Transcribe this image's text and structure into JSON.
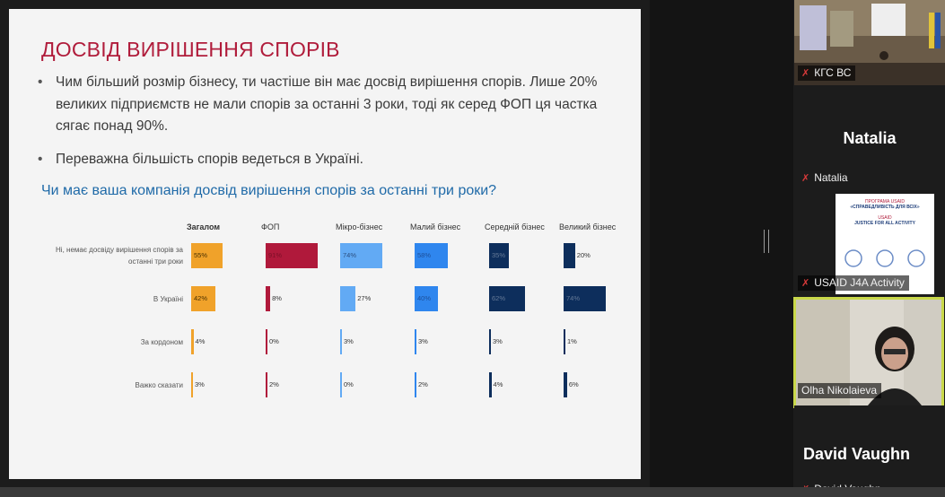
{
  "slide": {
    "title": "ДОСВІД ВИРІШЕННЯ СПОРІВ",
    "bullets": [
      "Чим більший розмір бізнесу, ти частіше він має досвід вирішення спорів. Лише 20% великих підприємств не мали спорів за останні 3 роки, тоді як серед ФОП ця частка сягає понад 90%.",
      "Переважна більшість спорів ведеться в Україні."
    ],
    "question": "Чи має ваша компанія досвід вирішення спорів за останні три роки?"
  },
  "chart_data": {
    "type": "table",
    "columns": [
      {
        "name": "Загалом",
        "color": "#f0a22a"
      },
      {
        "name": "ФОП",
        "color": "#b0193b"
      },
      {
        "name": "Мікро-бізнес",
        "color": "#62aaf4"
      },
      {
        "name": "Малий бізнес",
        "color": "#2f86ee"
      },
      {
        "name": "Середній бізнес",
        "color": "#0d2e5c"
      },
      {
        "name": "Великий  бізнес",
        "color": "#0d2e5c"
      }
    ],
    "rows": [
      {
        "label": "Ні, немає досвіду вирішення спорів за останні три роки",
        "values": [
          55,
          91,
          74,
          58,
          35,
          20
        ]
      },
      {
        "label": "В Україні",
        "values": [
          42,
          8,
          27,
          40,
          62,
          74
        ]
      },
      {
        "label": "За кордоном",
        "values": [
          4,
          0,
          3,
          3,
          3,
          1
        ]
      },
      {
        "label": "Важко сказати",
        "values": [
          3,
          2,
          0,
          2,
          4,
          6
        ]
      }
    ],
    "value_suffix": "%"
  },
  "participants": [
    {
      "name": "КГС ВС",
      "kind": "video"
    },
    {
      "name": "Natalia",
      "kind": "name-only"
    },
    {
      "name": "USAID J4A Activity",
      "kind": "logo",
      "logo_lines": [
        "ПРОГРАМА USAID",
        "«СПРАВЕДЛИВІСТЬ ДЛЯ ВСІХ»",
        "USAID",
        "JUSTICE FOR ALL ACTIVITY"
      ]
    },
    {
      "name": "Olha Nikolaieva",
      "kind": "video",
      "active": true
    },
    {
      "name": "David Vaughn",
      "kind": "name-only"
    }
  ],
  "colors": {
    "title": "#b01c3b",
    "question": "#1f6aa8",
    "active_speaker_border": "#c9d84a"
  }
}
